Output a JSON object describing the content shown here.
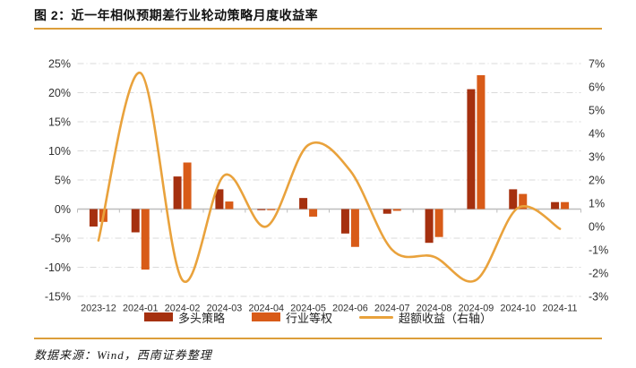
{
  "title": "图 2：近一年相似预期差行业轮动策略月度收益率",
  "footer": "数据来源：Wind，西南证券整理",
  "colors": {
    "long_bar": "#A5300F",
    "equal_bar": "#D85B18",
    "excess_line": "#E9A23C",
    "rule": "#DC9E3A",
    "grid": "#DADADA",
    "zero_axis": "#BDBDBD",
    "text": "#303030"
  },
  "legend": [
    {
      "label": "多头策略",
      "type": "bar"
    },
    {
      "label": "行业等权",
      "type": "bar"
    },
    {
      "label": "超额收益（右轴）",
      "type": "line"
    }
  ],
  "chart_data": {
    "type": "bar",
    "title": "近一年相似预期差行业轮动策略月度收益率",
    "categories": [
      "2023-12",
      "2024-01",
      "2024-02",
      "2024-03",
      "2024-04",
      "2024-05",
      "2024-06",
      "2024-07",
      "2024-08",
      "2024-09",
      "2024-10",
      "2024-11"
    ],
    "series": [
      {
        "name": "多头策略",
        "type": "bar",
        "axis": "left",
        "color": "#A5300F",
        "values": [
          -3.0,
          -4.0,
          5.6,
          3.4,
          -0.1,
          1.9,
          -4.2,
          -0.8,
          -5.8,
          20.6,
          3.4,
          1.2
        ]
      },
      {
        "name": "行业等权",
        "type": "bar",
        "axis": "left",
        "color": "#D85B18",
        "values": [
          -2.2,
          -10.4,
          8.0,
          1.3,
          -0.1,
          -1.3,
          -6.5,
          -0.3,
          -4.8,
          23.0,
          2.6,
          1.2
        ]
      },
      {
        "name": "超额收益（右轴）",
        "type": "line",
        "axis": "right",
        "color": "#E9A23C",
        "smoothed": true,
        "values": [
          -0.6,
          6.6,
          -2.3,
          2.2,
          0.0,
          3.5,
          2.4,
          -1.0,
          -1.3,
          -2.3,
          0.8,
          -0.1
        ]
      }
    ],
    "left_axis": {
      "min": -15,
      "max": 25,
      "step": 5,
      "unit": "%",
      "ticks": [
        "-15%",
        "-10%",
        "-5%",
        "0%",
        "5%",
        "10%",
        "15%",
        "20%",
        "25%"
      ]
    },
    "right_axis": {
      "min": -3,
      "max": 7,
      "step": 1,
      "unit": "%",
      "ticks": [
        "-3%",
        "-2%",
        "-1%",
        "0%",
        "1%",
        "2%",
        "3%",
        "4%",
        "5%",
        "6%",
        "7%"
      ]
    },
    "grid": "horizontal dash-dot",
    "legend_position": "bottom"
  }
}
